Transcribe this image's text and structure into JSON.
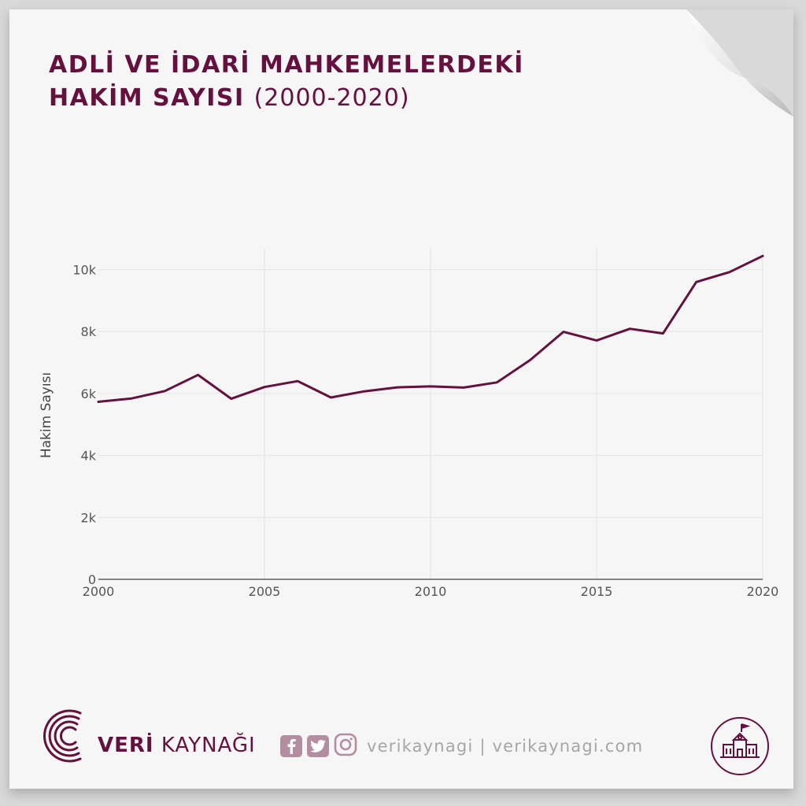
{
  "title": {
    "line1": "ADLİ VE İDARİ MAHKEMELERDEKİ",
    "line2": "HAKİM SAYISI",
    "subtitle": "(2000-2020)"
  },
  "brand": {
    "logo_bold": "VERİ",
    "logo_rest": "KAYNAĞI",
    "social_text": "verikaynagi | verikaynagi.com",
    "color": "#64123d"
  },
  "chart_data": {
    "type": "line",
    "title": "ADLİ VE İDARİ MAHKEMELERDEKİ HAKİM SAYISI (2000-2020)",
    "xlabel": "",
    "ylabel": "Hakim Sayısı",
    "xlim": [
      2000,
      2020
    ],
    "ylim": [
      0,
      10700
    ],
    "x_ticks": [
      2000,
      2005,
      2010,
      2015,
      2020
    ],
    "y_ticks": [
      0,
      2000,
      4000,
      6000,
      8000,
      10000
    ],
    "y_tick_labels": [
      "0",
      "2k",
      "4k",
      "6k",
      "8k",
      "10k"
    ],
    "grid": true,
    "legend": "none",
    "line_color": "#64123d",
    "series": [
      {
        "x": [
          2000,
          2001,
          2002,
          2003,
          2004,
          2005,
          2006,
          2007,
          2008,
          2009,
          2010,
          2011,
          2012,
          2013,
          2014,
          2015,
          2016,
          2017,
          2018,
          2019,
          2020
        ],
        "values": [
          5730,
          5840,
          6080,
          6600,
          5830,
          6210,
          6400,
          5870,
          6070,
          6200,
          6230,
          6190,
          6360,
          7080,
          7990,
          7710,
          8090,
          7940,
          9600,
          9920,
          10440
        ]
      }
    ]
  }
}
